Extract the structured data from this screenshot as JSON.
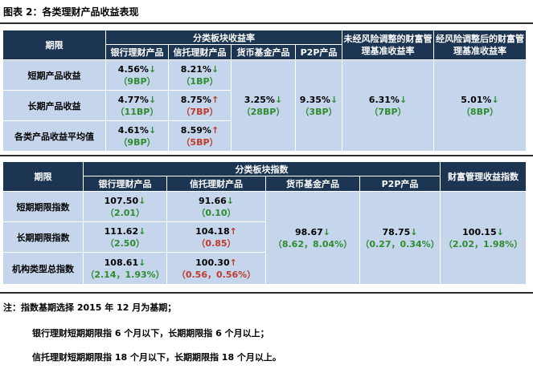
{
  "title": "图表 2：各类理财产品收益表现",
  "table1": {
    "h_period": "期限",
    "h_group": "分类板块收益率",
    "h_nonrisk": "未经风险调整的财富管理基准收益率",
    "h_risk": "经风险调整后的财富管理基准收益率",
    "cols": [
      "银行理财产品",
      "信托理财产品",
      "货币基金产品",
      "P2P产品"
    ],
    "rows": [
      {
        "label": "短期产品收益",
        "bank": "4.56%",
        "bank_arrow": "↓",
        "bank_chg": "（9BP）",
        "trust": "8.21%",
        "trust_arrow": "↓",
        "trust_chg": "（1BP）"
      },
      {
        "label": "长期产品收益",
        "bank": "4.77%",
        "bank_arrow": "↓",
        "bank_chg": "（11BP）",
        "trust": "8.75%",
        "trust_arrow": "↑",
        "trust_chg": "（7BP）"
      },
      {
        "label": "各类产品收益平均值",
        "bank": "4.61%",
        "bank_arrow": "↓",
        "bank_chg": "（9BP）",
        "trust": "8.59%",
        "trust_arrow": "↑",
        "trust_chg": "（5BP）"
      }
    ],
    "money": "3.25%",
    "money_arrow": "↓",
    "money_chg": "（28BP）",
    "p2p": "9.35%",
    "p2p_arrow": "↓",
    "p2p_chg": "（3BP）",
    "nonrisk": "6.31%",
    "nonrisk_arrow": "↓",
    "nonrisk_chg": "（7BP）",
    "risk": "5.01%",
    "risk_arrow": "↓",
    "risk_chg": "（8BP）"
  },
  "table2": {
    "h_period": "期限",
    "h_group": "分类板块指数",
    "h_index": "财富管理收益指数",
    "cols": [
      "银行理财产品",
      "信托理财产品",
      "货币基金产品",
      "P2P产品"
    ],
    "rows": [
      {
        "label": "短期期限指数",
        "bank": "107.50",
        "bank_arrow": "↓",
        "bank_chg": "（2.01）",
        "trust": "91.66",
        "trust_arrow": "↓",
        "trust_chg": "（0.10）"
      },
      {
        "label": "长期期限指数",
        "bank": "111.62",
        "bank_arrow": "↓",
        "bank_chg": "（2.50）",
        "trust": "104.18",
        "trust_arrow": "↑",
        "trust_chg": "（0.85）"
      },
      {
        "label": "机构类型总指数",
        "bank": "108.61",
        "bank_arrow": "↓",
        "bank_chg": "（2.14，1.93%）",
        "trust": "100.30",
        "trust_arrow": "↑",
        "trust_chg": "（0.56，0.56%）"
      }
    ],
    "money": "98.67",
    "money_arrow": "↓",
    "money_chg": "（8.62，8.04%）",
    "p2p": "78.75",
    "p2p_arrow": "↓",
    "p2p_chg": "（0.27，0.34%）",
    "index": "100.15",
    "index_arrow": "↓",
    "index_chg": "（2.02，1.98%）"
  },
  "notes": {
    "line1": "注：指数基期选择 2015 年 12 月为基期；",
    "line2": "银行理财短期期限指 6 个月以下，长期期限指 6 个月以上；",
    "line3": "信托理财短期期限指 18 个月以下，长期期限指 18 个月以上。"
  },
  "colors": {
    "header_bg": "#1c3553",
    "cell_bg": "#c5d6ec",
    "down": "#2e8b2e",
    "up": "#c0392b"
  }
}
